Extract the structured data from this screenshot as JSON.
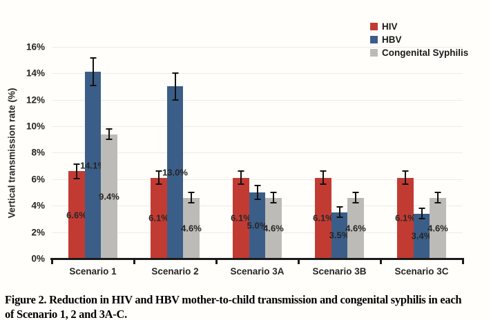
{
  "figure": {
    "caption_line1": "Figure 2. Reduction in HIV and HBV mother-to-child transmission and congenital syphilis in each",
    "caption_line2": "of Scenario 1, 2 and 3A-C."
  },
  "chart_data": {
    "type": "bar",
    "title": "",
    "xlabel": "",
    "ylabel": "Vertical transmission rate (%)",
    "categories": [
      "Scenario 1",
      "Scenario 2",
      "Scenario 3A",
      "Scenario 3B",
      "Scenario 3C"
    ],
    "series": [
      {
        "name": "HIV",
        "color": "#c23b33",
        "values": [
          6.6,
          6.1,
          6.1,
          6.1,
          6.1
        ],
        "labels": [
          "6.6%",
          "6.1%",
          "6.1%",
          "6.1%",
          "6.1%"
        ],
        "errors": [
          0.55,
          0.5,
          0.5,
          0.5,
          0.5
        ]
      },
      {
        "name": "HBV",
        "color": "#3b5e88",
        "values": [
          14.1,
          13.0,
          5.0,
          3.5,
          3.4
        ],
        "labels": [
          "14.1%",
          "13.0%",
          "5.0%",
          "3.5%",
          "3.4%"
        ],
        "errors": [
          1.05,
          1.0,
          0.5,
          0.4,
          0.4
        ]
      },
      {
        "name": "Congenital Syphilis",
        "color": "#bdbbb7",
        "values": [
          9.4,
          4.6,
          4.6,
          4.6,
          4.6
        ],
        "labels": [
          "9.4%",
          "4.6%",
          "4.6%",
          "4.6%",
          "4.6%"
        ],
        "errors": [
          0.4,
          0.4,
          0.4,
          0.4,
          0.4
        ]
      }
    ],
    "y_ticks": [
      "0%",
      "2%",
      "4%",
      "6%",
      "8%",
      "10%",
      "12%",
      "14%",
      "16%"
    ],
    "ylim": [
      0,
      16
    ],
    "grid": true,
    "legend_position": "top-right",
    "error_bars": true,
    "data_labels_position": "center-of-bar"
  }
}
